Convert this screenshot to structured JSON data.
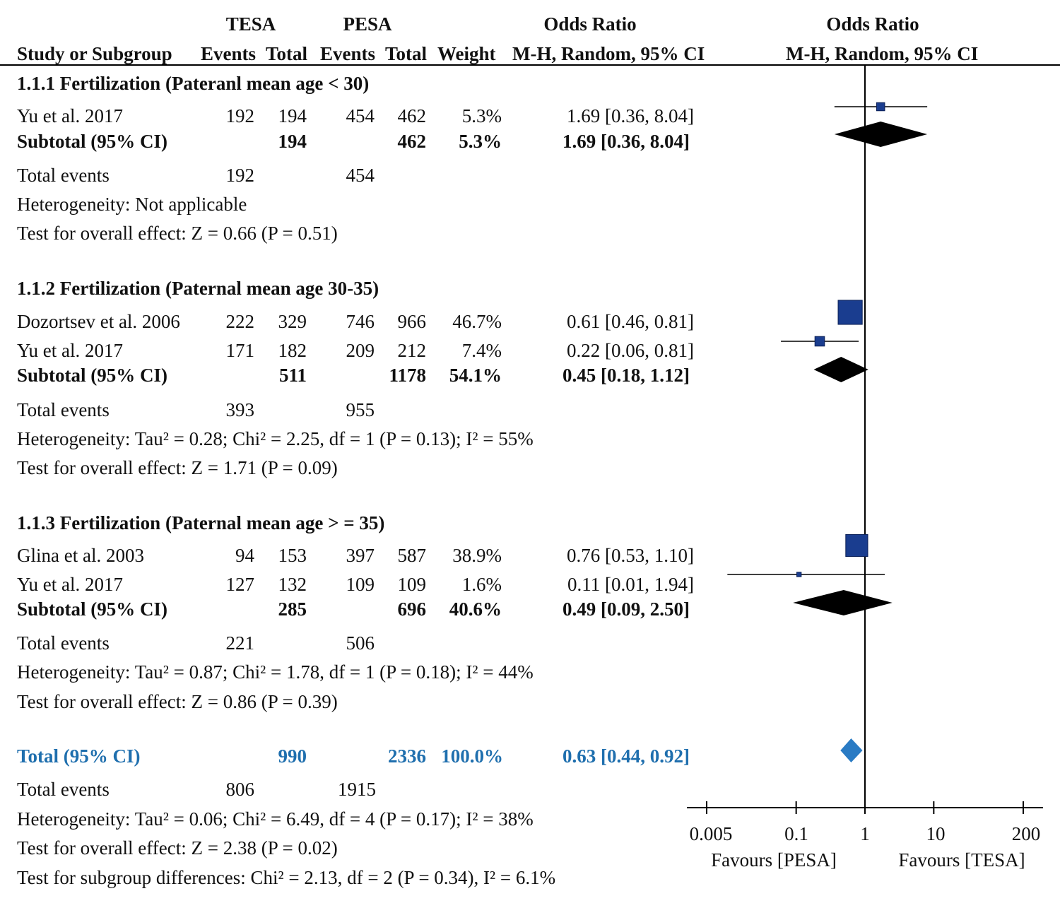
{
  "header": {
    "group1": "TESA",
    "group2": "PESA",
    "or_title_left": "Odds Ratio",
    "or_title_right": "Odds Ratio",
    "study_col": "Study or Subgroup",
    "events1": "Events",
    "total1": "Total",
    "events2": "Events",
    "total2": "Total",
    "weight": "Weight",
    "method_left": "M-H, Random, 95% CI",
    "method_right": "M-H, Random, 95% CI"
  },
  "subgroups": [
    {
      "title": "1.1.1 Fertilization (Pateranl mean age < 30)",
      "studies": [
        {
          "name": "Yu et al. 2017",
          "e1": "192",
          "t1": "194",
          "e2": "454",
          "t2": "462",
          "w": "5.3%",
          "ci": "1.69 [0.36, 8.04]"
        }
      ],
      "subtotal": {
        "label": "Subtotal (95% CI)",
        "t1": "194",
        "t2": "462",
        "w": "5.3%",
        "ci": "1.69 [0.36, 8.04]"
      },
      "total_events": {
        "label": "Total events",
        "e1": "192",
        "e2": "454"
      },
      "heterogeneity": "Heterogeneity: Not applicable",
      "overall": "Test for overall effect: Z = 0.66 (P = 0.51)"
    },
    {
      "title": "1.1.2 Fertilization (Paternal mean age 30-35)",
      "studies": [
        {
          "name": "Dozortsev et al. 2006",
          "e1": "222",
          "t1": "329",
          "e2": "746",
          "t2": "966",
          "w": "46.7%",
          "ci": "0.61 [0.46, 0.81]"
        },
        {
          "name": "Yu et al. 2017",
          "e1": "171",
          "t1": "182",
          "e2": "209",
          "t2": "212",
          "w": "7.4%",
          "ci": "0.22 [0.06, 0.81]"
        }
      ],
      "subtotal": {
        "label": "Subtotal (95% CI)",
        "t1": "511",
        "t2": "1178",
        "w": "54.1%",
        "ci": "0.45 [0.18, 1.12]"
      },
      "total_events": {
        "label": "Total events",
        "e1": "393",
        "e2": "955"
      },
      "heterogeneity": "Heterogeneity: Tau² = 0.28; Chi² = 2.25, df = 1 (P = 0.13); I² = 55%",
      "overall": "Test for overall effect: Z = 1.71 (P = 0.09)"
    },
    {
      "title": "1.1.3 Fertilization (Paternal mean age > = 35)",
      "studies": [
        {
          "name": "Glina et al. 2003",
          "e1": "94",
          "t1": "153",
          "e2": "397",
          "t2": "587",
          "w": "38.9%",
          "ci": "0.76 [0.53, 1.10]"
        },
        {
          "name": "Yu et al. 2017",
          "e1": "127",
          "t1": "132",
          "e2": "109",
          "t2": "109",
          "w": "1.6%",
          "ci": "0.11 [0.01, 1.94]"
        }
      ],
      "subtotal": {
        "label": "Subtotal (95% CI)",
        "t1": "285",
        "t2": "696",
        "w": "40.6%",
        "ci": "0.49 [0.09, 2.50]"
      },
      "total_events": {
        "label": "Total events",
        "e1": "221",
        "e2": "506"
      },
      "heterogeneity": "Heterogeneity: Tau² = 0.87; Chi² = 1.78, df = 1 (P = 0.18); I² = 44%",
      "overall": "Test for overall effect: Z = 0.86 (P = 0.39)"
    }
  ],
  "total": {
    "label": "Total (95% CI)",
    "t1": "990",
    "t2": "2336",
    "w": "100.0%",
    "ci": "0.63 [0.44, 0.92]",
    "events_label": "Total events",
    "e1": "806",
    "e2": "1915",
    "heterogeneity": "Heterogeneity: Tau² = 0.06; Chi² = 6.49, df = 4 (P = 0.17); I² = 38%",
    "overall": "Test for overall effect: Z = 2.38 (P = 0.02)",
    "subgroup_diff": "Test for subgroup differences: Chi² = 2.13, df = 2 (P = 0.34), I² = 6.1%"
  },
  "axis": {
    "ticks": [
      {
        "value": 0.005,
        "label": "0.005"
      },
      {
        "value": 0.1,
        "label": "0.1"
      },
      {
        "value": 1,
        "label": "1"
      },
      {
        "value": 10,
        "label": "10"
      },
      {
        "value": 200,
        "label": "200"
      }
    ],
    "favours_left": "Favours [PESA]",
    "favours_right": "Favours [TESA]"
  },
  "colors": {
    "study_marker": "#1a3d8f",
    "diamond": "#000000",
    "total_diamond": "#2a7bc4",
    "total_text": "#1f6fae"
  },
  "chart_data": {
    "type": "forest",
    "scale": "log",
    "xlim": [
      0.005,
      200
    ],
    "reference_line": 1,
    "studies": [
      {
        "subgroup": "1.1.1",
        "name": "Yu et al. 2017",
        "or": 1.69,
        "lo": 0.36,
        "hi": 8.04,
        "weight": 5.3
      },
      {
        "subgroup": "1.1.2",
        "name": "Dozortsev et al. 2006",
        "or": 0.61,
        "lo": 0.46,
        "hi": 0.81,
        "weight": 46.7
      },
      {
        "subgroup": "1.1.2",
        "name": "Yu et al. 2017",
        "or": 0.22,
        "lo": 0.06,
        "hi": 0.81,
        "weight": 7.4
      },
      {
        "subgroup": "1.1.3",
        "name": "Glina et al. 2003",
        "or": 0.76,
        "lo": 0.53,
        "hi": 1.1,
        "weight": 38.9
      },
      {
        "subgroup": "1.1.3",
        "name": "Yu et al. 2017",
        "or": 0.11,
        "lo": 0.01,
        "hi": 1.94,
        "weight": 1.6
      }
    ],
    "subtotals": [
      {
        "subgroup": "1.1.1",
        "or": 1.69,
        "lo": 0.36,
        "hi": 8.04
      },
      {
        "subgroup": "1.1.2",
        "or": 0.45,
        "lo": 0.18,
        "hi": 1.12
      },
      {
        "subgroup": "1.1.3",
        "or": 0.49,
        "lo": 0.09,
        "hi": 2.5
      }
    ],
    "overall": {
      "or": 0.63,
      "lo": 0.44,
      "hi": 0.92
    }
  }
}
